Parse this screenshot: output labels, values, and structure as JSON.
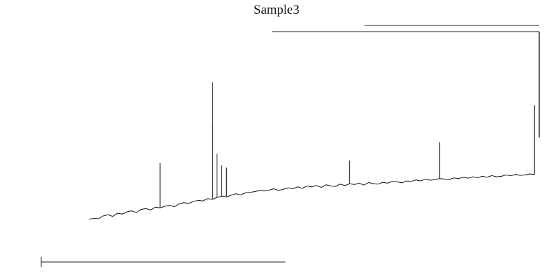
{
  "chart_data": {
    "type": "line",
    "title": "Sample3",
    "xlabel": "",
    "ylabel": "",
    "grid": false,
    "xlim": [
      0,
      1000
    ],
    "ylim": [
      0,
      1000
    ],
    "series": [
      {
        "x": [
          50,
          60,
          70,
          80,
          90,
          100,
          110,
          120,
          130,
          140,
          150,
          160,
          170,
          180,
          190,
          200,
          210,
          220,
          230,
          240,
          250,
          260,
          270,
          280,
          290,
          300,
          310,
          320,
          330,
          340,
          350,
          360,
          370,
          380,
          390,
          400,
          410,
          420,
          430,
          440,
          450,
          460,
          470,
          480,
          490,
          500,
          510,
          520,
          530,
          540,
          550,
          560,
          570,
          580,
          590,
          600,
          610,
          620,
          630,
          640,
          650,
          660,
          670,
          680,
          690,
          700,
          710,
          720,
          730,
          740,
          750,
          760,
          770,
          780,
          790,
          800,
          810,
          820,
          830,
          840,
          850,
          860,
          870,
          880,
          890,
          900,
          910,
          920,
          930,
          940,
          950,
          960,
          970,
          980,
          990
        ],
        "y": [
          185,
          190,
          188,
          200,
          205,
          198,
          212,
          208,
          218,
          222,
          215,
          228,
          232,
          226,
          238,
          235,
          242,
          246,
          240,
          252,
          258,
          254,
          262,
          268,
          265,
          275,
          272,
          280,
          286,
          282,
          290,
          296,
          292,
          300,
          302,
          306,
          310,
          308,
          312,
          318,
          310,
          316,
          322,
          318,
          326,
          320,
          330,
          326,
          332,
          324,
          335,
          330,
          328,
          338,
          332,
          340,
          336,
          342,
          334,
          345,
          340,
          338,
          346,
          342,
          350,
          348,
          344,
          352,
          350,
          356,
          352,
          360,
          355,
          358,
          362,
          360,
          358,
          365,
          362,
          368,
          364,
          370,
          366,
          372,
          368,
          375,
          370,
          372,
          378,
          374,
          380,
          376,
          378,
          382,
          380
        ]
      }
    ],
    "spikes": [
      {
        "x": 310,
        "y": 780
      },
      {
        "x": 320,
        "y": 470
      },
      {
        "x": 330,
        "y": 420
      },
      {
        "x": 340,
        "y": 410
      },
      {
        "x": 310,
        "y": 600
      },
      {
        "x": 200,
        "y": 430
      },
      {
        "x": 600,
        "y": 440
      },
      {
        "x": 790,
        "y": 520
      },
      {
        "x": 990,
        "y": 680
      }
    ]
  }
}
